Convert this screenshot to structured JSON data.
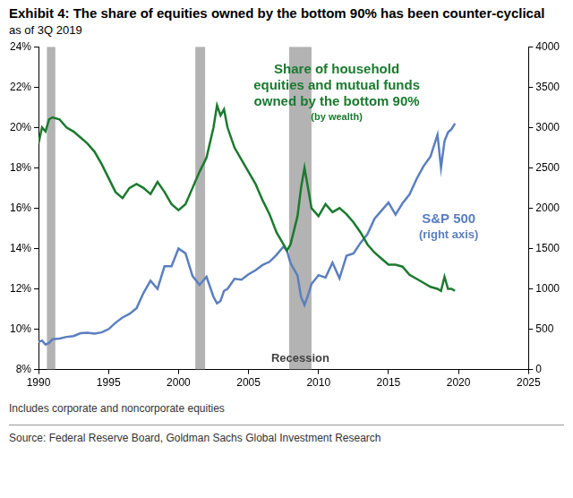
{
  "chart_data": {
    "type": "line",
    "title": "Exhibit 4: The share of equities owned by the bottom 90% has been counter-cyclical",
    "subtitle": "as of 3Q 2019",
    "notes": [
      "Includes corporate and noncorporate equities"
    ],
    "source": "Source: Federal Reserve Board, Goldman Sachs Global Investment Research",
    "x": [
      1990,
      1990.25,
      1990.5,
      1990.75,
      1991,
      1991.5,
      1992,
      1992.5,
      1993,
      1993.5,
      1994,
      1994.5,
      1995,
      1995.5,
      1996,
      1996.5,
      1997,
      1997.5,
      1998,
      1998.5,
      1999,
      1999.5,
      2000,
      2000.5,
      2001,
      2001.5,
      2002,
      2002.5,
      2002.75,
      2003,
      2003.25,
      2003.5,
      2004,
      2004.5,
      2005,
      2005.5,
      2006,
      2006.5,
      2007,
      2007.5,
      2007.75,
      2008,
      2008.5,
      2008.75,
      2009,
      2009.25,
      2009.5,
      2010,
      2010.5,
      2011,
      2011.5,
      2012,
      2012.5,
      2013,
      2013.5,
      2014,
      2014.5,
      2015,
      2015.5,
      2016,
      2016.5,
      2017,
      2017.5,
      2018,
      2018.5,
      2018.75,
      2019,
      2019.25,
      2019.5,
      2019.75
    ],
    "xlim": [
      1990,
      2025
    ],
    "xticks": [
      1990,
      1995,
      2000,
      2005,
      2010,
      2015,
      2020,
      2025
    ],
    "ylim": [
      8,
      24
    ],
    "yticks": [
      {
        "value": 8,
        "label": "8%"
      },
      {
        "value": 10,
        "label": "10%"
      },
      {
        "value": 12,
        "label": "12%"
      },
      {
        "value": 14,
        "label": "14%"
      },
      {
        "value": 16,
        "label": "16%"
      },
      {
        "value": 18,
        "label": "18%"
      },
      {
        "value": 20,
        "label": "20%"
      },
      {
        "value": 22,
        "label": "22%"
      },
      {
        "value": 24,
        "label": "24%"
      }
    ],
    "y2lim": [
      0,
      4000
    ],
    "y2ticks": [
      0,
      500,
      1000,
      1500,
      2000,
      2500,
      3000,
      3500,
      4000
    ],
    "grid": false,
    "recessions": {
      "label": "Recession",
      "color": "#b3b3b3",
      "periods": [
        [
          1990.6,
          1991.2
        ],
        [
          2001.2,
          2001.9
        ],
        [
          2007.9,
          2009.5
        ]
      ]
    },
    "series": [
      {
        "name": "Share of household equities and mutual funds owned by the bottom 90%",
        "note": "(by wealth)",
        "color": "#1a7a2e",
        "values": [
          19.2,
          20.0,
          19.8,
          20.4,
          20.5,
          20.4,
          20.0,
          19.8,
          19.5,
          19.2,
          18.8,
          18.2,
          17.5,
          16.8,
          16.5,
          17.0,
          17.2,
          17.0,
          16.7,
          17.3,
          16.8,
          16.2,
          15.9,
          16.2,
          17.0,
          17.8,
          18.5,
          20.0,
          21.1,
          20.6,
          20.9,
          20.0,
          19.0,
          18.4,
          17.8,
          17.2,
          16.4,
          15.7,
          14.8,
          14.2,
          13.9,
          14.2,
          15.6,
          17.0,
          18.0,
          17.0,
          16.0,
          15.6,
          16.2,
          15.8,
          16.0,
          15.7,
          15.3,
          14.8,
          14.2,
          13.8,
          13.5,
          13.2,
          13.2,
          13.1,
          12.7,
          12.5,
          12.3,
          12.1,
          12.0,
          11.9,
          12.6,
          12.0,
          12.0,
          11.9
        ]
      },
      {
        "name": "S&P 500",
        "note": "(right axis)",
        "color": "#5b7fbf",
        "axis": "y2",
        "values": [
          340,
          360,
          310,
          330,
          375,
          385,
          405,
          415,
          450,
          455,
          445,
          460,
          500,
          580,
          645,
          690,
          760,
          950,
          1100,
          1000,
          1280,
          1280,
          1500,
          1440,
          1160,
          1050,
          1150,
          900,
          820,
          850,
          975,
          1000,
          1125,
          1115,
          1180,
          1230,
          1295,
          1335,
          1420,
          1525,
          1470,
          1320,
          1165,
          900,
          800,
          920,
          1060,
          1170,
          1140,
          1325,
          1130,
          1410,
          1440,
          1570,
          1680,
          1870,
          1970,
          2070,
          1920,
          2060,
          2170,
          2360,
          2520,
          2640,
          2910,
          2500,
          2830,
          2940,
          2980,
          3050
        ]
      }
    ]
  }
}
